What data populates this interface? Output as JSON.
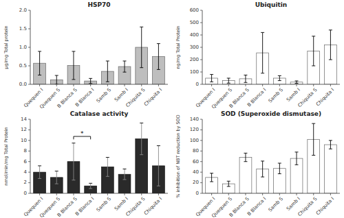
{
  "chart_data": [
    {
      "type": "bar",
      "title": "HSP70",
      "ylabel": "μg/mg Total protein",
      "categories": [
        "Quequen I",
        "Quequen S",
        "B Blanca S",
        "B Blanca I",
        "Samb S",
        "Samb I",
        "Chiquita S",
        "Chiquita I"
      ],
      "values": [
        0.57,
        0.12,
        0.51,
        0.09,
        0.35,
        0.48,
        1.0,
        0.75
      ],
      "errors": [
        0.32,
        0.12,
        0.38,
        0.07,
        0.28,
        0.15,
        0.55,
        0.35
      ],
      "color": "#bebebe",
      "ylim": [
        0,
        2.0
      ],
      "yticks": [
        {
          "value": 0,
          "label": "0.0"
        },
        0.5,
        {
          "value": 1.0,
          "label": "1.0"
        },
        1.5,
        {
          "value": 2.0,
          "label": "2.0"
        }
      ],
      "grid": false
    },
    {
      "type": "bar",
      "title": "Ubiquitin",
      "ylabel": "ng/mg Total Protein",
      "categories": [
        "Quequen I",
        "Quequen S",
        "B Blanca S",
        "B Blanca I",
        "Samb S",
        "Samb I",
        "Chiquita S",
        "Chiquita I"
      ],
      "values": [
        50,
        30,
        45,
        255,
        50,
        18,
        270,
        320
      ],
      "errors": [
        30,
        20,
        30,
        165,
        20,
        10,
        120,
        120
      ],
      "color": "#ffffff",
      "ylim": [
        0,
        600
      ],
      "yticks": [
        0,
        100,
        200,
        300,
        400,
        500,
        600
      ],
      "grid": false
    },
    {
      "type": "bar",
      "title": "Catalase activity",
      "ylabel": "nmol/min/mg Total Protein",
      "categories": [
        "Quequen I",
        "Quequen S",
        "B Blanca S",
        "B Blanca I",
        "Samb S",
        "Samb I",
        "Chiquita S",
        "Chiquita I"
      ],
      "values": [
        4.0,
        3.0,
        6.0,
        1.4,
        5.0,
        3.6,
        10.3,
        5.2
      ],
      "errors": [
        1.2,
        1.2,
        3.5,
        0.5,
        1.8,
        1.0,
        3.0,
        3.8
      ],
      "color": "#2a2a2a",
      "ylim": [
        0,
        14
      ],
      "yticks": [
        0,
        2,
        4,
        6,
        8,
        10,
        12,
        14
      ],
      "annotations": [
        {
          "text": "*",
          "from": "B Blanca S",
          "to": "B Blanca I"
        }
      ],
      "grid": false
    },
    {
      "type": "bar",
      "title": "SOD (Superoxide dismutase)",
      "ylabel": "% inhibition of NBT reduction by SOD",
      "categories": [
        "Quequen I",
        "Quequen S",
        "B Blanca S",
        "B Blanca I",
        "Samb S",
        "Samb I",
        "Chiquita S",
        "Chiquita I"
      ],
      "values": [
        30,
        18,
        68,
        46,
        47,
        66,
        102,
        92
      ],
      "errors": [
        8,
        5,
        8,
        15,
        10,
        12,
        30,
        8
      ],
      "color": "#ffffff",
      "ylim": [
        0,
        140
      ],
      "yticks": [
        0,
        20,
        40,
        60,
        80,
        100,
        120,
        140
      ],
      "grid": false
    }
  ]
}
